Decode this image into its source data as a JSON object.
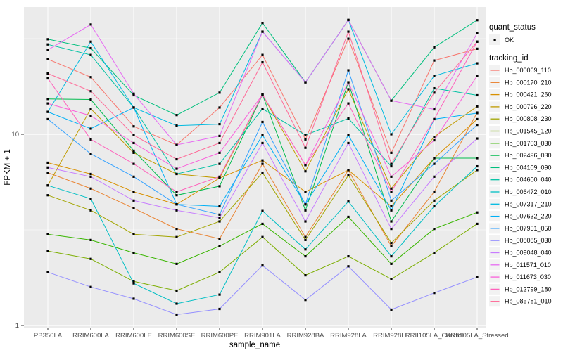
{
  "figure": {
    "background": "#FFFFFF",
    "panel_background": "#EBEBEB",
    "grid_color": "#FFFFFF",
    "axis_text_color": "#4D4D4D",
    "point_color": "#000000"
  },
  "chart_data": {
    "type": "line",
    "title": "",
    "xlabel": "sample_name",
    "ylabel": "FPKM + 1",
    "y_scale": "log10",
    "y_ticks": [
      1,
      10
    ],
    "y_minor_ticks": [
      3.162,
      31.62
    ],
    "ylim": [
      1,
      46
    ],
    "grid": "on",
    "legend_position": "right",
    "point_marker": "small black square (quant_status OK)",
    "categories": [
      "PB350LA",
      "RRIM600LA",
      "RRIM600LE",
      "RRIM600SE",
      "RRIM600PE",
      "RRIM901LA",
      "RRIM928BA",
      "RRIM928LA",
      "RRIM928LE",
      "RRII105LA_Control",
      "RRII105LA_Stressed"
    ],
    "series": [
      {
        "name": "Hb_000069_110",
        "color": "#F8766D",
        "values": [
          24.7,
          19.9,
          11.0,
          8.8,
          13.8,
          26.0,
          9.4,
          31.6,
          8.0,
          24.3,
          28.0
        ]
      },
      {
        "name": "Hb_000170_210",
        "color": "#EA8331",
        "values": [
          6.3,
          5.2,
          4.1,
          3.2,
          2.84,
          7.0,
          2.9,
          6.5,
          2.6,
          5.0,
          13.0
        ]
      },
      {
        "name": "Hb_000421_260",
        "color": "#D89000",
        "values": [
          7.1,
          6.2,
          5.0,
          4.3,
          5.9,
          7.3,
          5.0,
          6.5,
          4.2,
          7.5,
          12.0
        ]
      },
      {
        "name": "Hb_000796_220",
        "color": "#C09B00",
        "values": [
          5.4,
          13.6,
          8.0,
          6.2,
          5.9,
          16.1,
          6.4,
          17.2,
          5.2,
          9.7,
          14.0
        ]
      },
      {
        "name": "Hb_000808_230",
        "color": "#A3A500",
        "values": [
          4.8,
          4.0,
          3.0,
          2.9,
          3.5,
          6.3,
          2.8,
          6.1,
          2.7,
          4.5,
          6.5
        ]
      },
      {
        "name": "Hb_001545_120",
        "color": "#7CAE00",
        "values": [
          2.45,
          2.23,
          1.7,
          1.52,
          1.9,
          2.9,
          1.83,
          2.3,
          1.75,
          2.4,
          3.4
        ]
      },
      {
        "name": "Hb_001703_030",
        "color": "#39B600",
        "values": [
          3.0,
          2.8,
          2.4,
          2.1,
          2.6,
          3.4,
          2.3,
          3.7,
          2.1,
          3.2,
          3.9
        ]
      },
      {
        "name": "Hb_002496_030",
        "color": "#00BB4E",
        "values": [
          15.3,
          15.2,
          8.2,
          4.8,
          5.35,
          16.1,
          4.0,
          18.7,
          3.5,
          7.5,
          7.5
        ]
      },
      {
        "name": "Hb_004109_090",
        "color": "#00BF7D",
        "values": [
          31.4,
          28.2,
          16.0,
          12.6,
          16.5,
          38.2,
          18.7,
          39.6,
          15.0,
          28.5,
          39.5
        ]
      },
      {
        "name": "Hb_004600_040",
        "color": "#00C1A3",
        "values": [
          29.5,
          26.0,
          13.8,
          6.2,
          7.0,
          13.6,
          9.9,
          12.1,
          6.8,
          17.4,
          16.0
        ]
      },
      {
        "name": "Hb_006472_010",
        "color": "#00BFC4",
        "values": [
          5.4,
          4.6,
          1.66,
          1.3,
          1.45,
          3.97,
          2.5,
          4.45,
          2.3,
          4.2,
          6.8
        ]
      },
      {
        "name": "Hb_007317_210",
        "color": "#00BAE0",
        "values": [
          13.1,
          30.5,
          13.8,
          11.1,
          11.3,
          34.4,
          18.7,
          39.6,
          10.0,
          20.2,
          23.5
        ]
      },
      {
        "name": "Hb_007632_220",
        "color": "#00B0F6",
        "values": [
          13.1,
          10.7,
          13.8,
          4.3,
          4.2,
          9.9,
          4.3,
          9.9,
          4.0,
          12.0,
          12.9
        ]
      },
      {
        "name": "Hb_007951_050",
        "color": "#35A2FF",
        "values": [
          12.0,
          7.9,
          6.0,
          4.3,
          3.8,
          11.6,
          4.3,
          21.6,
          4.5,
          7.0,
          11.2
        ]
      },
      {
        "name": "Hb_008085_030",
        "color": "#9590FF",
        "values": [
          1.9,
          1.59,
          1.38,
          1.14,
          1.22,
          2.06,
          1.36,
          2.04,
          1.21,
          1.48,
          1.79
        ]
      },
      {
        "name": "Hb_009048_040",
        "color": "#C77CFF",
        "values": [
          6.7,
          6.0,
          4.5,
          4.0,
          3.66,
          9.0,
          3.5,
          9.0,
          3.2,
          6.0,
          9.5
        ]
      },
      {
        "name": "Hb_011571_010",
        "color": "#E76BF3",
        "values": [
          27.6,
          37.5,
          16.3,
          8.8,
          9.8,
          34.4,
          18.7,
          39.6,
          15.0,
          13.5,
          33.8
        ]
      },
      {
        "name": "Hb_011673_030",
        "color": "#FA62DB",
        "values": [
          14.5,
          12.5,
          9.0,
          6.6,
          8.0,
          16.1,
          6.9,
          18.7,
          6.0,
          9.3,
          20.2
        ]
      },
      {
        "name": "Hb_012799_180",
        "color": "#FF62BC",
        "values": [
          19.6,
          9.4,
          7.0,
          5.0,
          6.0,
          16.1,
          6.9,
          14.5,
          5.0,
          12.0,
          30.5
        ]
      },
      {
        "name": "Hb_085781_010",
        "color": "#FF6A98",
        "values": [
          20.8,
          16.8,
          9.9,
          7.4,
          9.0,
          23.8,
          8.5,
          34.4,
          7.0,
          16.5,
          30.5
        ]
      }
    ]
  },
  "legend": {
    "quant_status": {
      "title": "quant_status",
      "items": [
        {
          "label": "OK",
          "marker": "black-point"
        }
      ]
    },
    "tracking_id": {
      "title": "tracking_id"
    }
  }
}
